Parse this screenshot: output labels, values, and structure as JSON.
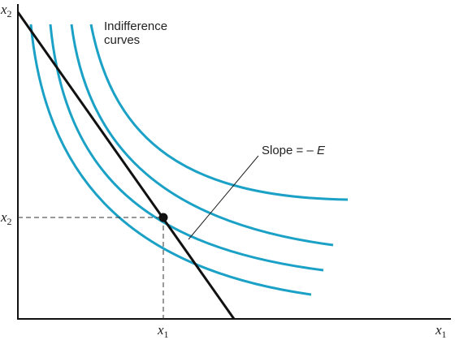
{
  "axes": {
    "y_label": {
      "var": "x",
      "sub": "2"
    },
    "x_label": {
      "var": "x",
      "sub": "1"
    }
  },
  "point": {
    "y_label": {
      "var": "x",
      "sub": "2"
    },
    "x_label": {
      "var": "x",
      "sub": "1"
    }
  },
  "annotations": {
    "curves_label": [
      "Indifference",
      "curves"
    ],
    "slope_label": {
      "text": "Slope = –",
      "symbol": "E"
    }
  }
}
